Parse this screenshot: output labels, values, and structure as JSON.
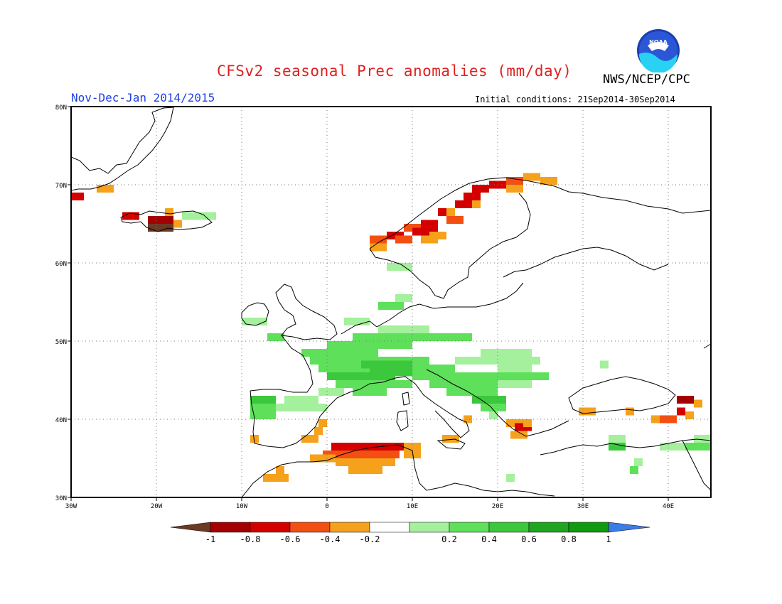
{
  "header": {
    "title": "CFSv2 seasonal Prec anomalies (mm/day)",
    "org": "NWS/NCEP/CPC",
    "period": "Nov-Dec-Jan 2014/2015",
    "init_conditions": "Initial conditions: 21Sep2014-30Sep2014",
    "logo_text": "NOAA"
  },
  "map": {
    "lon_range": [
      -30,
      45
    ],
    "lat_range": [
      30,
      80
    ],
    "lat_ticks": [
      {
        "value": 80,
        "label": "80N"
      },
      {
        "value": 70,
        "label": "70N"
      },
      {
        "value": 60,
        "label": "60N"
      },
      {
        "value": 50,
        "label": "50N"
      },
      {
        "value": 40,
        "label": "40N"
      },
      {
        "value": 30,
        "label": "30N"
      }
    ],
    "lon_ticks": [
      {
        "value": -30,
        "label": "30W"
      },
      {
        "value": -20,
        "label": "20W"
      },
      {
        "value": -10,
        "label": "10W"
      },
      {
        "value": 0,
        "label": "0"
      },
      {
        "value": 10,
        "label": "10E"
      },
      {
        "value": 20,
        "label": "20E"
      },
      {
        "value": 30,
        "label": "30E"
      },
      {
        "value": 40,
        "label": "40E"
      }
    ],
    "grid": "dotted",
    "anomaly_cells": [
      {
        "lon": -30,
        "lat": 68,
        "w": 1.5,
        "h": 1,
        "v": -0.7
      },
      {
        "lon": -27,
        "lat": 69,
        "w": 2,
        "h": 1,
        "v": -0.3
      },
      {
        "lon": -24,
        "lat": 65.5,
        "w": 2,
        "h": 1,
        "v": -0.7
      },
      {
        "lon": -21,
        "lat": 65,
        "w": 3,
        "h": 1,
        "v": -0.9
      },
      {
        "lon": -21,
        "lat": 64,
        "w": 3,
        "h": 1,
        "v": -1.1
      },
      {
        "lon": -18,
        "lat": 64.5,
        "w": 1,
        "h": 1,
        "v": -0.3
      },
      {
        "lon": -19,
        "lat": 66,
        "w": 1,
        "h": 1,
        "v": -0.3
      },
      {
        "lon": -17,
        "lat": 65.5,
        "w": 2,
        "h": 1,
        "v": 0.3
      },
      {
        "lon": -15,
        "lat": 65.5,
        "w": 2,
        "h": 1,
        "v": 0.3
      },
      {
        "lon": 5,
        "lat": 62.5,
        "w": 2,
        "h": 1,
        "v": -0.5
      },
      {
        "lon": 5,
        "lat": 61.5,
        "w": 2,
        "h": 1,
        "v": -0.3
      },
      {
        "lon": 7,
        "lat": 63,
        "w": 2,
        "h": 1,
        "v": -0.7
      },
      {
        "lon": 8,
        "lat": 62.5,
        "w": 2,
        "h": 1,
        "v": -0.5
      },
      {
        "lon": 9,
        "lat": 64,
        "w": 2,
        "h": 1,
        "v": -0.5
      },
      {
        "lon": 11,
        "lat": 64.5,
        "w": 2,
        "h": 1,
        "v": -0.7
      },
      {
        "lon": 10,
        "lat": 63.5,
        "w": 3,
        "h": 1,
        "v": -0.7
      },
      {
        "lon": 12,
        "lat": 63,
        "w": 2,
        "h": 1,
        "v": -0.3
      },
      {
        "lon": 11,
        "lat": 62.5,
        "w": 2,
        "h": 1,
        "v": -0.3
      },
      {
        "lon": 13,
        "lat": 66,
        "w": 2,
        "h": 1,
        "v": -0.7
      },
      {
        "lon": 14,
        "lat": 65,
        "w": 2,
        "h": 1,
        "v": -0.5
      },
      {
        "lon": 15,
        "lat": 67,
        "w": 2,
        "h": 1,
        "v": -0.7
      },
      {
        "lon": 16,
        "lat": 68,
        "w": 2,
        "h": 1,
        "v": -0.7
      },
      {
        "lon": 17,
        "lat": 69,
        "w": 2,
        "h": 1,
        "v": -0.7
      },
      {
        "lon": 19,
        "lat": 69.5,
        "w": 2,
        "h": 1,
        "v": -0.7
      },
      {
        "lon": 21,
        "lat": 70,
        "w": 2,
        "h": 1,
        "v": -0.5
      },
      {
        "lon": 21,
        "lat": 69,
        "w": 2,
        "h": 1,
        "v": -0.3
      },
      {
        "lon": 23,
        "lat": 70.5,
        "w": 2,
        "h": 1,
        "v": -0.3
      },
      {
        "lon": 25,
        "lat": 70,
        "w": 2,
        "h": 1,
        "v": -0.3
      },
      {
        "lon": 14,
        "lat": 66,
        "w": 1,
        "h": 1,
        "v": -0.3
      },
      {
        "lon": 17,
        "lat": 67,
        "w": 1,
        "h": 1,
        "v": -0.3
      },
      {
        "lon": 7,
        "lat": 59,
        "w": 3,
        "h": 1,
        "v": 0.3
      },
      {
        "lon": 8,
        "lat": 55,
        "w": 2,
        "h": 1,
        "v": 0.3
      },
      {
        "lon": 6,
        "lat": 54,
        "w": 3,
        "h": 1,
        "v": 0.5
      },
      {
        "lon": -10,
        "lat": 52,
        "w": 3,
        "h": 1,
        "v": 0.3
      },
      {
        "lon": -7,
        "lat": 50,
        "w": 2,
        "h": 1,
        "v": 0.5
      },
      {
        "lon": 2,
        "lat": 52,
        "w": 3,
        "h": 1,
        "v": 0.3
      },
      {
        "lon": -3,
        "lat": 48,
        "w": 9,
        "h": 1,
        "v": 0.5
      },
      {
        "lon": 0,
        "lat": 49,
        "w": 10,
        "h": 1,
        "v": 0.5
      },
      {
        "lon": 3,
        "lat": 50,
        "w": 14,
        "h": 1,
        "v": 0.5
      },
      {
        "lon": 6,
        "lat": 51,
        "w": 6,
        "h": 1,
        "v": 0.3
      },
      {
        "lon": -2,
        "lat": 47,
        "w": 14,
        "h": 1,
        "v": 0.5
      },
      {
        "lon": -1,
        "lat": 46,
        "w": 16,
        "h": 1,
        "v": 0.5
      },
      {
        "lon": 0,
        "lat": 45,
        "w": 8,
        "h": 1,
        "v": 0.7
      },
      {
        "lon": 4,
        "lat": 46.5,
        "w": 6,
        "h": 1,
        "v": 0.7
      },
      {
        "lon": 5,
        "lat": 45.5,
        "w": 5,
        "h": 1,
        "v": 0.7
      },
      {
        "lon": 1,
        "lat": 44,
        "w": 5,
        "h": 1,
        "v": 0.5
      },
      {
        "lon": 3,
        "lat": 43,
        "w": 4,
        "h": 1,
        "v": 0.5
      },
      {
        "lon": 6,
        "lat": 44,
        "w": 4,
        "h": 1,
        "v": 0.5
      },
      {
        "lon": 10,
        "lat": 45,
        "w": 12,
        "h": 1,
        "v": 0.5
      },
      {
        "lon": 12,
        "lat": 44,
        "w": 8,
        "h": 1,
        "v": 0.5
      },
      {
        "lon": 14,
        "lat": 43,
        "w": 6,
        "h": 1,
        "v": 0.5
      },
      {
        "lon": 17,
        "lat": 42,
        "w": 4,
        "h": 1,
        "v": 0.7
      },
      {
        "lon": 18,
        "lat": 41,
        "w": 3,
        "h": 1,
        "v": 0.5
      },
      {
        "lon": 19,
        "lat": 40,
        "w": 1,
        "h": 1,
        "v": 0.3
      },
      {
        "lon": 15,
        "lat": 47,
        "w": 10,
        "h": 1,
        "v": 0.3
      },
      {
        "lon": 18,
        "lat": 48,
        "w": 6,
        "h": 1,
        "v": 0.3
      },
      {
        "lon": 20,
        "lat": 46,
        "w": 4,
        "h": 1,
        "v": 0.3
      },
      {
        "lon": 22,
        "lat": 45,
        "w": 4,
        "h": 1,
        "v": 0.5
      },
      {
        "lon": 20,
        "lat": 44,
        "w": 4,
        "h": 1,
        "v": 0.3
      },
      {
        "lon": -9,
        "lat": 42,
        "w": 3,
        "h": 1,
        "v": 0.7
      },
      {
        "lon": -9,
        "lat": 41,
        "w": 3,
        "h": 1,
        "v": 0.5
      },
      {
        "lon": -6,
        "lat": 41,
        "w": 6,
        "h": 1,
        "v": 0.3
      },
      {
        "lon": -9,
        "lat": 40,
        "w": 3,
        "h": 1,
        "v": 0.5
      },
      {
        "lon": -5,
        "lat": 42,
        "w": 4,
        "h": 1,
        "v": 0.3
      },
      {
        "lon": -1,
        "lat": 43,
        "w": 3,
        "h": 1,
        "v": 0.3
      },
      {
        "lon": 32,
        "lat": 46.5,
        "w": 1,
        "h": 1,
        "v": 0.3
      },
      {
        "lon": 41,
        "lat": 42,
        "w": 2,
        "h": 1,
        "v": -0.9
      },
      {
        "lon": 43,
        "lat": 41.5,
        "w": 1,
        "h": 1,
        "v": -0.3
      },
      {
        "lon": 41,
        "lat": 40.5,
        "w": 1,
        "h": 1,
        "v": -0.7
      },
      {
        "lon": 42,
        "lat": 40,
        "w": 1,
        "h": 1,
        "v": -0.3
      },
      {
        "lon": 38,
        "lat": 39.5,
        "w": 2,
        "h": 1,
        "v": -0.3
      },
      {
        "lon": 39,
        "lat": 39.5,
        "w": 2,
        "h": 1,
        "v": -0.5
      },
      {
        "lon": 29.5,
        "lat": 40.5,
        "w": 2,
        "h": 1,
        "v": -0.3
      },
      {
        "lon": 35,
        "lat": 40.5,
        "w": 1,
        "h": 1,
        "v": -0.3
      },
      {
        "lon": 21,
        "lat": 39,
        "w": 2,
        "h": 1,
        "v": -0.3
      },
      {
        "lon": 22,
        "lat": 38.5,
        "w": 2,
        "h": 1,
        "v": -0.7
      },
      {
        "lon": 23,
        "lat": 39,
        "w": 1,
        "h": 1,
        "v": -0.3
      },
      {
        "lon": 21.5,
        "lat": 37.5,
        "w": 2,
        "h": 1,
        "v": -0.3
      },
      {
        "lon": 16,
        "lat": 39.5,
        "w": 1,
        "h": 1,
        "v": -0.3
      },
      {
        "lon": 13.5,
        "lat": 37,
        "w": 2,
        "h": 1,
        "v": -0.3
      },
      {
        "lon": 33,
        "lat": 37,
        "w": 2,
        "h": 1,
        "v": 0.3
      },
      {
        "lon": 33,
        "lat": 36,
        "w": 2,
        "h": 1,
        "v": 0.7
      },
      {
        "lon": 36,
        "lat": 34,
        "w": 1,
        "h": 1,
        "v": 0.3
      },
      {
        "lon": 35.5,
        "lat": 33,
        "w": 1,
        "h": 1,
        "v": 0.5
      },
      {
        "lon": 39,
        "lat": 36,
        "w": 3,
        "h": 1,
        "v": 0.3
      },
      {
        "lon": 42,
        "lat": 36,
        "w": 3,
        "h": 1,
        "v": 0.5
      },
      {
        "lon": 43,
        "lat": 37,
        "w": 2,
        "h": 1,
        "v": 0.3
      },
      {
        "lon": 21,
        "lat": 32,
        "w": 1,
        "h": 1,
        "v": 0.3
      },
      {
        "lon": 0.5,
        "lat": 36,
        "w": 9,
        "h": 1,
        "v": -0.7
      },
      {
        "lon": -0.5,
        "lat": 35,
        "w": 9,
        "h": 1,
        "v": -0.5
      },
      {
        "lon": 9.5,
        "lat": 36,
        "w": 1,
        "h": 1,
        "v": -0.3
      },
      {
        "lon": -2,
        "lat": 34.5,
        "w": 3,
        "h": 1,
        "v": -0.3
      },
      {
        "lon": 1,
        "lat": 34,
        "w": 7,
        "h": 1,
        "v": -0.3
      },
      {
        "lon": 2.5,
        "lat": 33,
        "w": 4,
        "h": 1,
        "v": -0.3
      },
      {
        "lon": 9,
        "lat": 35,
        "w": 2,
        "h": 1,
        "v": -0.3
      },
      {
        "lon": 9,
        "lat": 36,
        "w": 2,
        "h": 1,
        "v": -0.3
      },
      {
        "lon": -7.5,
        "lat": 32,
        "w": 3,
        "h": 1,
        "v": -0.3
      },
      {
        "lon": -6,
        "lat": 33,
        "w": 1,
        "h": 1,
        "v": -0.3
      },
      {
        "lon": -3,
        "lat": 37,
        "w": 2,
        "h": 1,
        "v": -0.3
      },
      {
        "lon": -1.5,
        "lat": 38,
        "w": 1,
        "h": 1,
        "v": -0.3
      },
      {
        "lon": -1,
        "lat": 39,
        "w": 1,
        "h": 1,
        "v": -0.3
      },
      {
        "lon": -9,
        "lat": 37,
        "w": 1,
        "h": 1,
        "v": -0.3
      }
    ]
  },
  "legend": {
    "colors": [
      "#6b3a24",
      "#a50000",
      "#d40000",
      "#f44f12",
      "#f5a11b",
      "#ffffff",
      "#a4f09c",
      "#5ee05a",
      "#3cc83c",
      "#1fa51f",
      "#0f9a0f",
      "#3b7de8"
    ],
    "labels": [
      "-1",
      "-0.8",
      "-0.6",
      "-0.4",
      "-0.2",
      "0.2",
      "0.4",
      "0.6",
      "0.8",
      "1"
    ]
  }
}
